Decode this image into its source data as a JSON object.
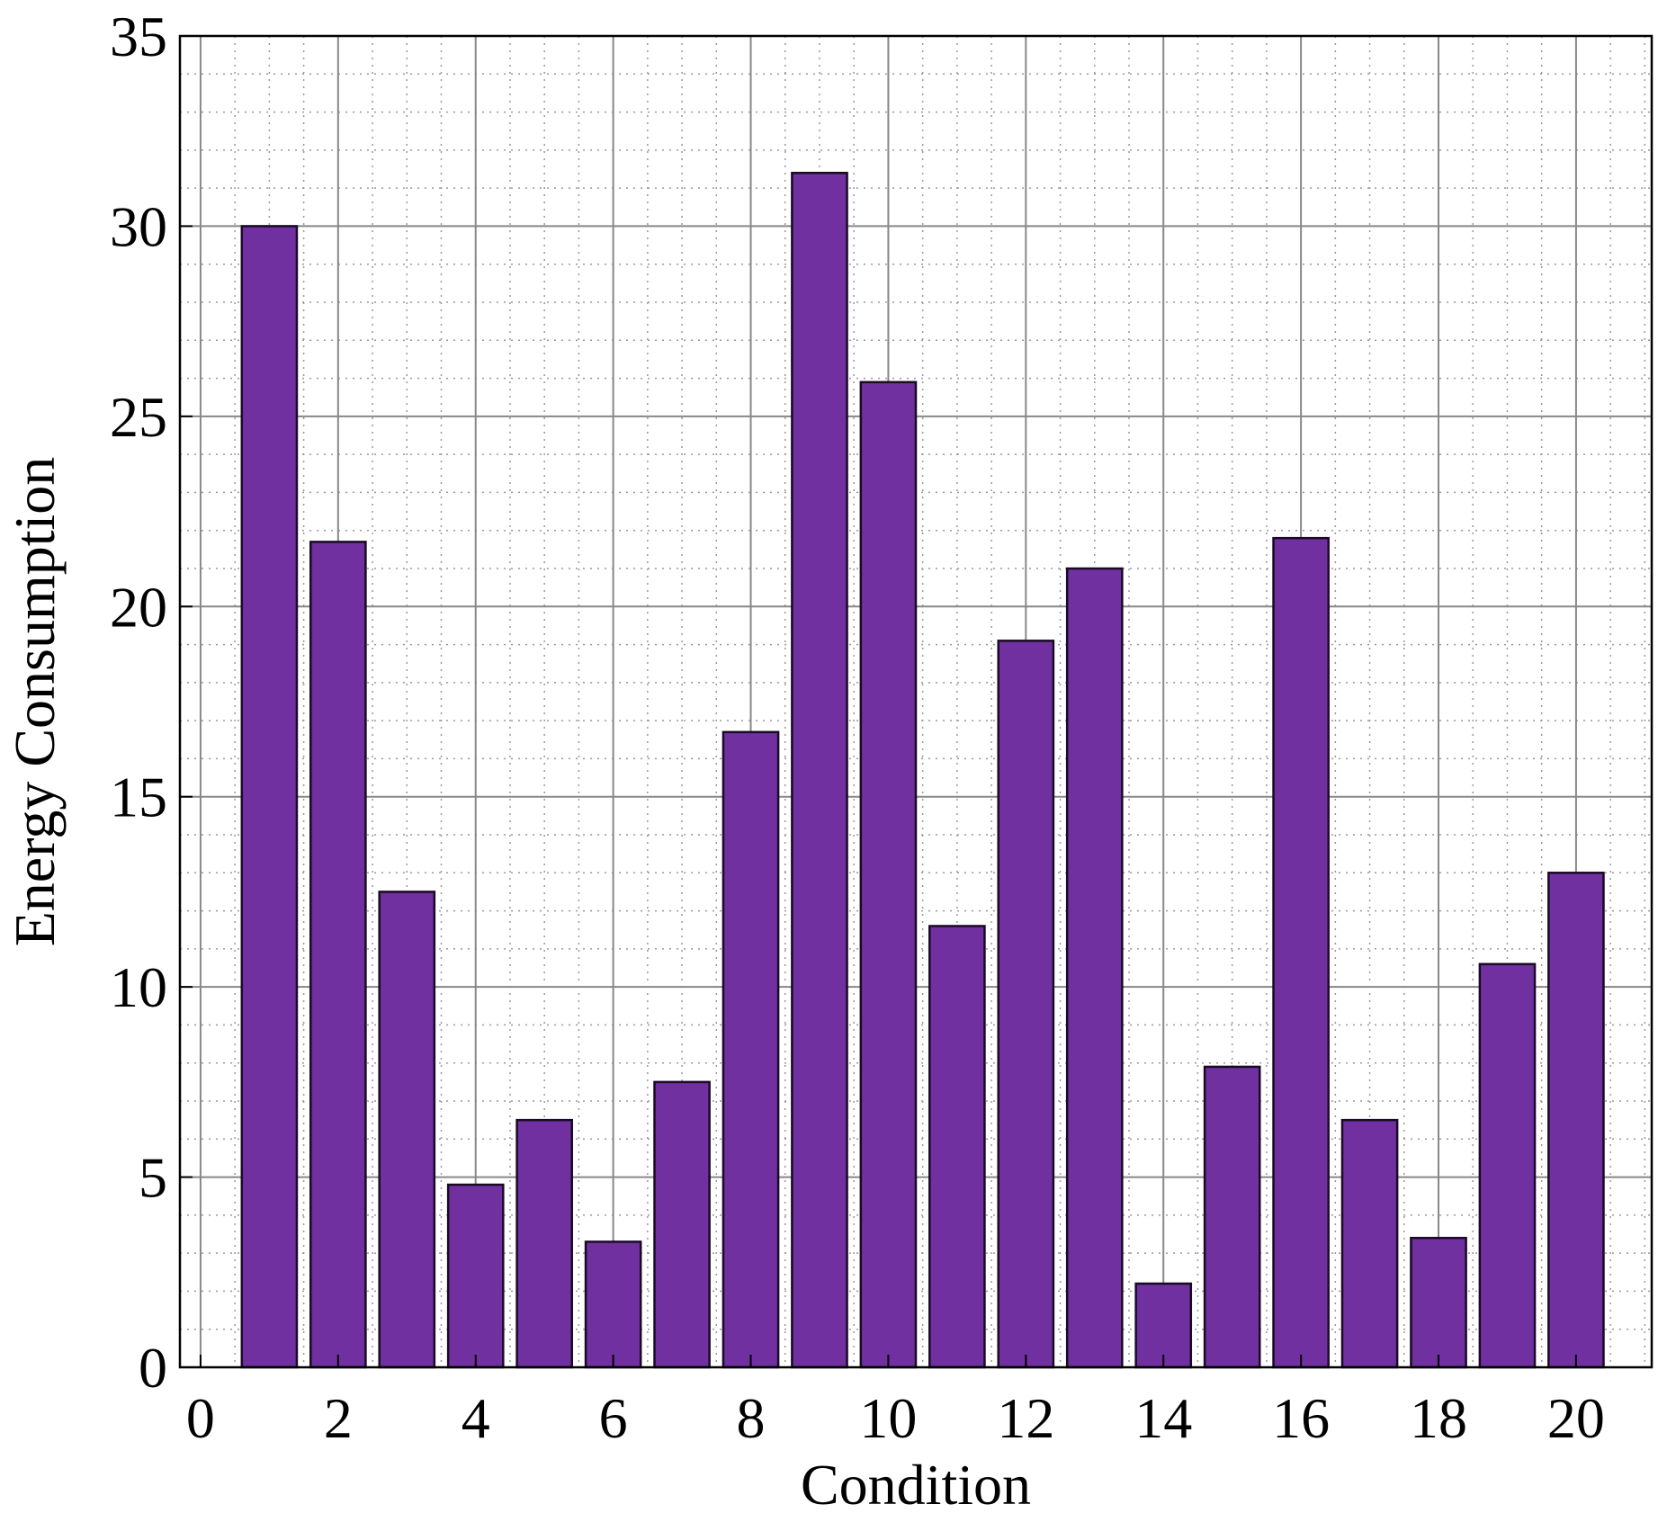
{
  "chart_data": {
    "type": "bar",
    "title": "",
    "xlabel": "Condition",
    "ylabel": "Energy Consumption",
    "x": [
      1,
      2,
      3,
      4,
      5,
      6,
      7,
      8,
      9,
      10,
      11,
      12,
      13,
      14,
      15,
      16,
      17,
      18,
      19,
      20
    ],
    "values": [
      30.0,
      21.7,
      12.5,
      4.8,
      6.5,
      3.3,
      7.5,
      16.7,
      31.4,
      25.9,
      11.6,
      19.1,
      21.0,
      2.2,
      7.9,
      21.8,
      6.5,
      3.4,
      10.6,
      13.0
    ],
    "xlim": [
      -0.3,
      21.1
    ],
    "ylim": [
      0,
      35
    ],
    "xticks": [
      0,
      2,
      4,
      6,
      8,
      10,
      12,
      14,
      16,
      18,
      20
    ],
    "yticks": [
      0,
      5,
      10,
      15,
      20,
      25,
      30,
      35
    ],
    "grid": true,
    "bar_color": "#7030A0",
    "bar_edge_color": "#1a0a24",
    "major_grid_color": "#888888",
    "minor_grid_color": "#999999"
  }
}
